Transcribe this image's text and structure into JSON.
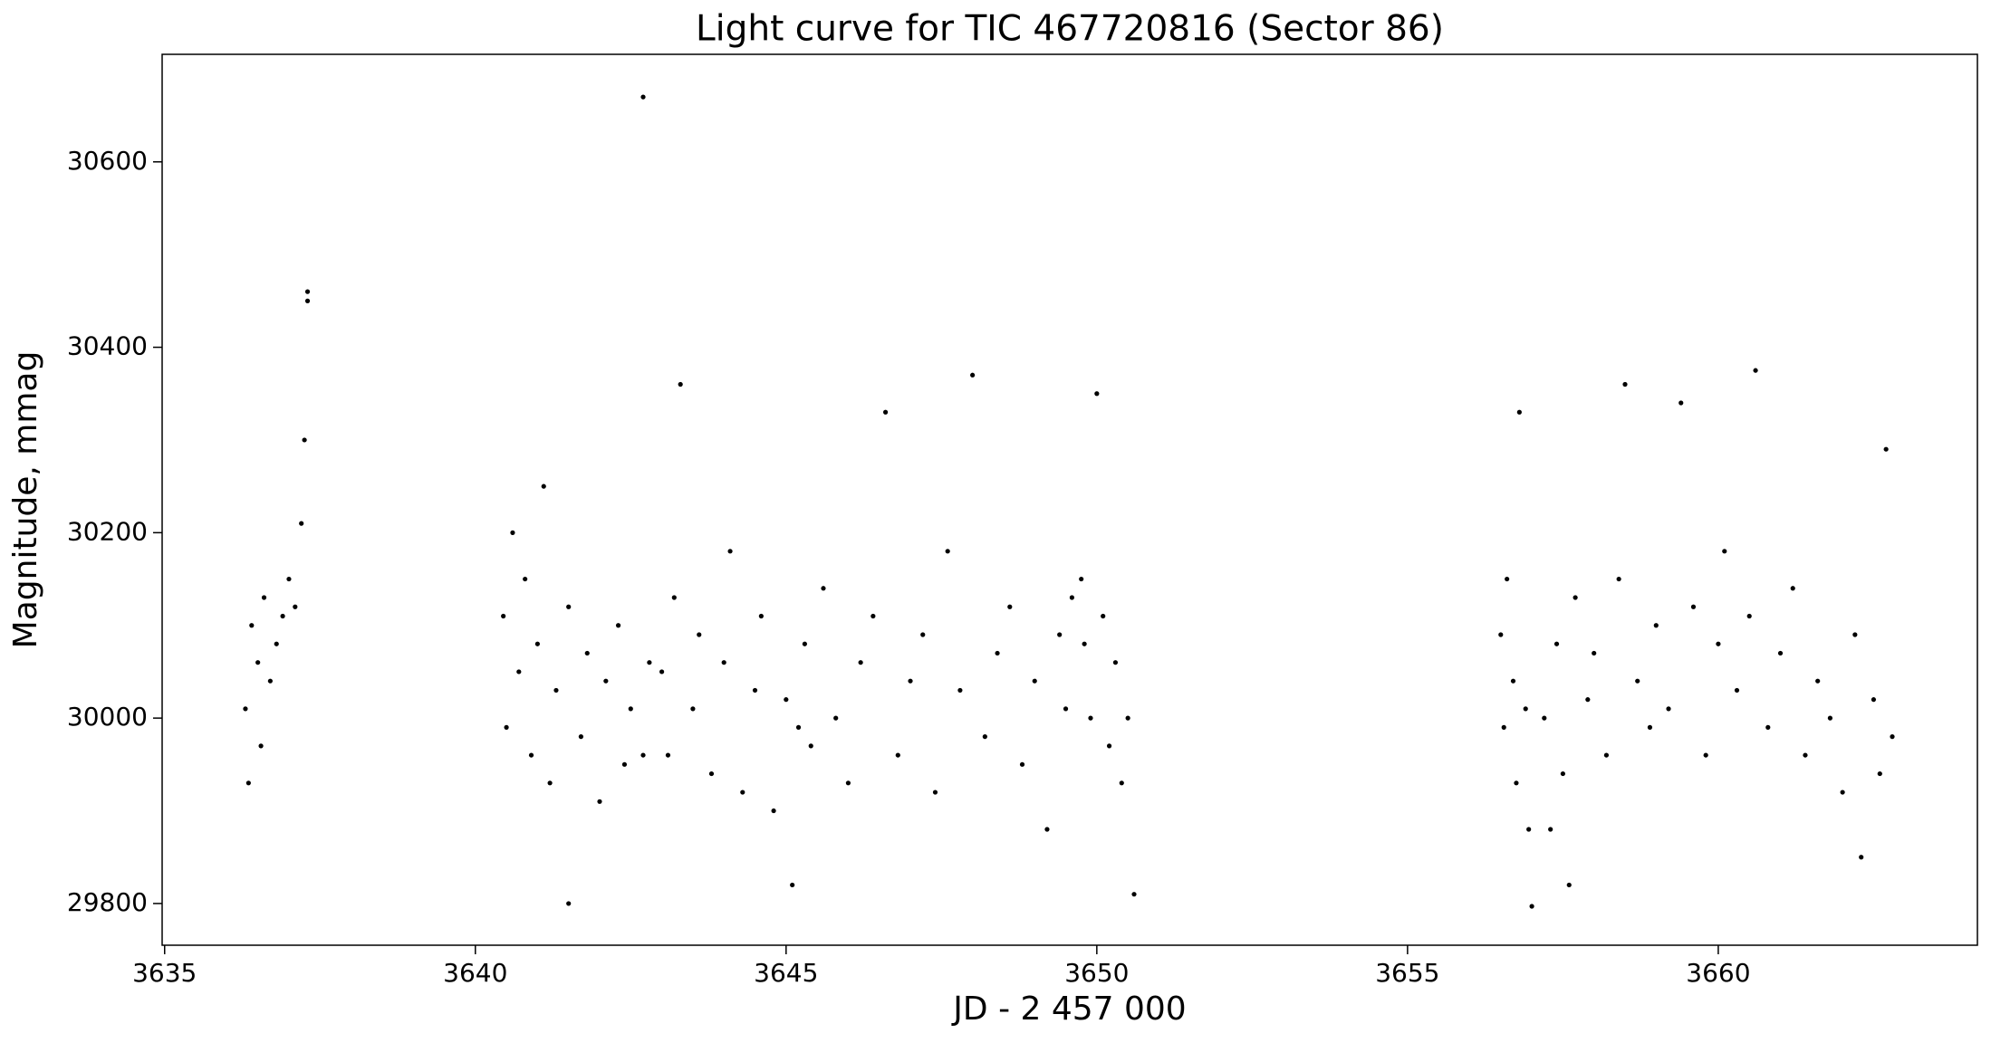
{
  "chart_data": {
    "type": "scatter",
    "title": "Light curve for TIC 467720816 (Sector 86)",
    "x_label": "JD - 2 457 000",
    "y_label": "Magnitude, mmag",
    "color": "#000000",
    "xlim": [
      3634.96,
      3664.17
    ],
    "ylim": [
      29755,
      30716
    ],
    "xticks": [
      3635,
      3640,
      3645,
      3650,
      3655,
      3660
    ],
    "yticks": [
      29800,
      30000,
      30200,
      30400,
      30600
    ],
    "x": [
      3636.3,
      3636.35,
      3636.4,
      3636.5,
      3636.55,
      3636.6,
      3636.7,
      3636.8,
      3636.9,
      3637.0,
      3637.1,
      3637.2,
      3637.25,
      3637.3,
      3637.3,
      3640.45,
      3640.5,
      3640.6,
      3640.7,
      3640.8,
      3640.9,
      3641.0,
      3641.1,
      3641.2,
      3641.3,
      3641.5,
      3641.5,
      3641.7,
      3641.8,
      3642.0,
      3642.1,
      3642.3,
      3642.4,
      3642.5,
      3642.7,
      3642.7,
      3642.8,
      3643.0,
      3643.1,
      3643.2,
      3643.3,
      3643.5,
      3643.6,
      3643.8,
      3644.0,
      3644.1,
      3644.3,
      3644.5,
      3644.6,
      3644.8,
      3645.0,
      3645.1,
      3645.3,
      3645.4,
      3645.6,
      3645.8,
      3646.0,
      3646.2,
      3646.4,
      3646.6,
      3646.8,
      3647.0,
      3647.2,
      3647.4,
      3647.6,
      3647.8,
      3648.0,
      3648.2,
      3648.4,
      3648.6,
      3648.8,
      3649.0,
      3649.2,
      3649.4,
      3649.5,
      3649.6,
      3645.2,
      3649.75,
      3649.8,
      3649.9,
      3650.0,
      3650.1,
      3650.2,
      3650.3,
      3650.4,
      3650.5,
      3650.6,
      3656.5,
      3656.55,
      3656.6,
      3656.7,
      3656.75,
      3656.8,
      3656.9,
      3656.95,
      3657.0,
      3657.2,
      3657.3,
      3657.4,
      3657.5,
      3657.7,
      3657.9,
      3658.0,
      3658.2,
      3658.4,
      3658.5,
      3658.7,
      3658.9,
      3659.0,
      3659.2,
      3659.4,
      3659.6,
      3659.8,
      3660.0,
      3660.1,
      3660.3,
      3660.5,
      3660.6,
      3660.8,
      3661.0,
      3661.2,
      3661.4,
      3661.6,
      3661.8,
      3662.0,
      3662.2,
      3662.3,
      3662.5,
      3662.6,
      3662.7,
      3662.8,
      3657.6
    ],
    "values": [
      30010,
      29930,
      30100,
      30060,
      29970,
      30130,
      30040,
      30080,
      30110,
      30150,
      30120,
      30210,
      30300,
      30460,
      30450,
      30110,
      29990,
      30200,
      30050,
      30150,
      29960,
      30080,
      30250,
      29930,
      30030,
      30120,
      29800,
      29980,
      30070,
      29910,
      30040,
      30100,
      29950,
      30010,
      30670,
      29960,
      30060,
      30050,
      29960,
      30130,
      30360,
      30010,
      30090,
      29940,
      30060,
      30180,
      29920,
      30030,
      30110,
      29900,
      30020,
      29820,
      30080,
      29970,
      30140,
      30000,
      29930,
      30060,
      30110,
      30330,
      29960,
      30040,
      30090,
      29920,
      30180,
      30030,
      30370,
      29980,
      30070,
      30120,
      29950,
      30040,
      29880,
      30090,
      30010,
      30130,
      29990,
      30150,
      30080,
      30000,
      30350,
      30110,
      29970,
      30060,
      29930,
      30000,
      29810,
      30090,
      29990,
      30150,
      30040,
      29930,
      30330,
      30010,
      29880,
      29797,
      30000,
      29880,
      30080,
      29940,
      30130,
      30020,
      30070,
      29960,
      30150,
      30360,
      30040,
      29990,
      30100,
      30010,
      30340,
      30120,
      29960,
      30080,
      30180,
      30030,
      30110,
      30375,
      29990,
      30070,
      30140,
      29960,
      30040,
      30000,
      29920,
      30090,
      29850,
      30020,
      29940,
      30290,
      29980,
      29820
    ]
  }
}
